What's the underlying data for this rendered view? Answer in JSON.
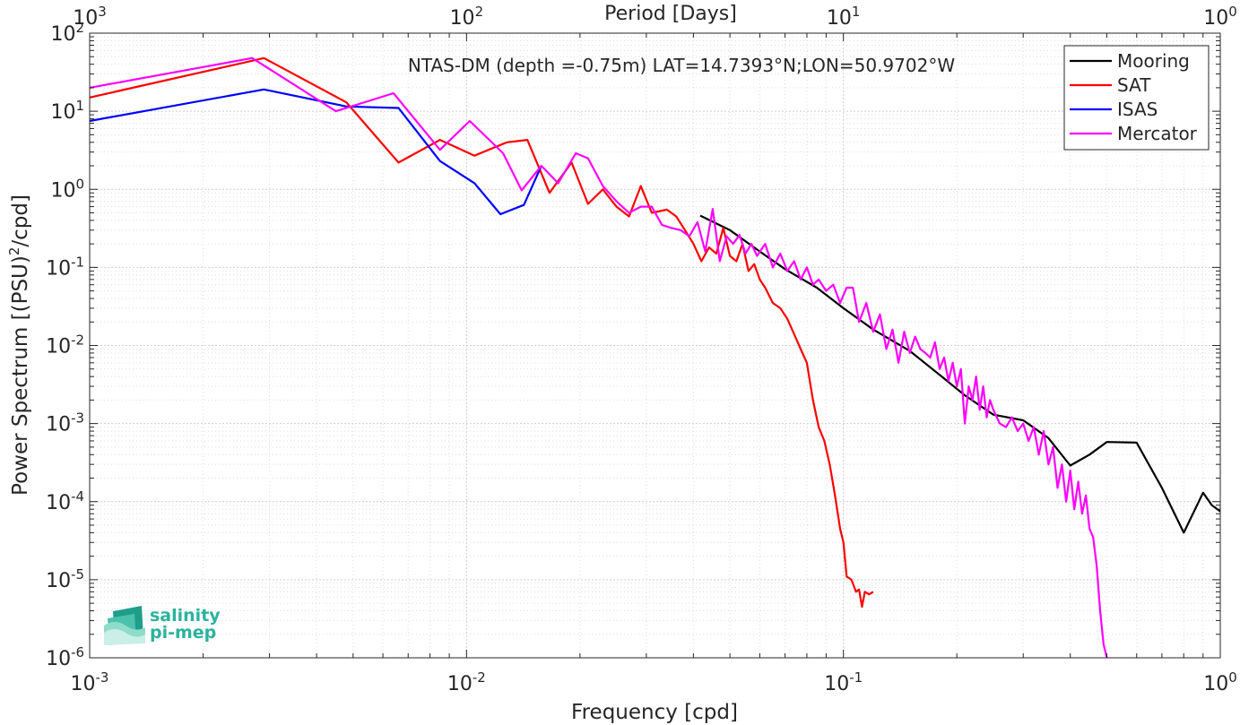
{
  "chart_data": {
    "type": "line",
    "title": "NTAS-DM (depth =-0.75m) LAT=14.7393°N;LON=50.9702°W",
    "xlabel": "Frequency [cpd]",
    "ylabel_prefix": "Power Spectrum [(PSU)",
    "ylabel_sup": "2",
    "ylabel_suffix": "/cpd]",
    "top_xlabel": "Period [Days]",
    "x_scale": "log",
    "y_scale": "log",
    "xlim": [
      0.001,
      1
    ],
    "ylim": [
      1e-06,
      100
    ],
    "grid": true,
    "legend_position": "top-right",
    "x_ticks": [
      {
        "v": 0.001,
        "base": "10",
        "exp": "-3"
      },
      {
        "v": 0.01,
        "base": "10",
        "exp": "-2"
      },
      {
        "v": 0.1,
        "base": "10",
        "exp": "-1"
      },
      {
        "v": 1,
        "base": "10",
        "exp": "0"
      }
    ],
    "top_ticks": [
      {
        "v": 0.001,
        "base": "10",
        "exp": "3"
      },
      {
        "v": 0.01,
        "base": "10",
        "exp": "2"
      },
      {
        "v": 0.1,
        "base": "10",
        "exp": "1"
      },
      {
        "v": 1,
        "base": "10",
        "exp": "0"
      }
    ],
    "y_ticks": [
      {
        "v": 1e-06,
        "base": "10",
        "exp": "-6"
      },
      {
        "v": 1e-05,
        "base": "10",
        "exp": "-5"
      },
      {
        "v": 0.0001,
        "base": "10",
        "exp": "-4"
      },
      {
        "v": 0.001,
        "base": "10",
        "exp": "-3"
      },
      {
        "v": 0.01,
        "base": "10",
        "exp": "-2"
      },
      {
        "v": 0.1,
        "base": "10",
        "exp": "-1"
      },
      {
        "v": 1,
        "base": "10",
        "exp": "0"
      },
      {
        "v": 10,
        "base": "10",
        "exp": "1"
      },
      {
        "v": 100,
        "base": "10",
        "exp": "2"
      }
    ],
    "series": [
      {
        "name": "Mooring",
        "color": "#000000",
        "points": [
          [
            0.0417,
            0.46
          ],
          [
            0.05,
            0.3
          ],
          [
            0.06,
            0.16
          ],
          [
            0.07,
            0.095
          ],
          [
            0.085,
            0.055
          ],
          [
            0.1,
            0.03
          ],
          [
            0.12,
            0.016
          ],
          [
            0.15,
            0.0085
          ],
          [
            0.18,
            0.0042
          ],
          [
            0.21,
            0.0023
          ],
          [
            0.25,
            0.0013
          ],
          [
            0.3,
            0.0011
          ],
          [
            0.35,
            0.00065
          ],
          [
            0.4,
            0.00029
          ],
          [
            0.45,
            0.0004
          ],
          [
            0.5,
            0.00058
          ],
          [
            0.6,
            0.00057
          ],
          [
            0.7,
            0.00015
          ],
          [
            0.8,
            4e-05
          ],
          [
            0.9,
            0.00013
          ],
          [
            0.95,
            9e-05
          ],
          [
            1.0,
            7.5e-05
          ]
        ]
      },
      {
        "name": "SAT",
        "color": "#ff0000",
        "points": [
          [
            0.001,
            15
          ],
          [
            0.0029,
            48
          ],
          [
            0.0048,
            13
          ],
          [
            0.0066,
            2.2
          ],
          [
            0.0085,
            4.3
          ],
          [
            0.0105,
            2.7
          ],
          [
            0.0118,
            3.4
          ],
          [
            0.0128,
            4.0
          ],
          [
            0.0145,
            4.3
          ],
          [
            0.0166,
            0.9
          ],
          [
            0.019,
            2.2
          ],
          [
            0.021,
            0.65
          ],
          [
            0.023,
            1.0
          ],
          [
            0.025,
            0.6
          ],
          [
            0.027,
            0.45
          ],
          [
            0.029,
            1.1
          ],
          [
            0.031,
            0.5
          ],
          [
            0.034,
            0.55
          ],
          [
            0.036,
            0.45
          ],
          [
            0.038,
            0.3
          ],
          [
            0.04,
            0.2
          ],
          [
            0.042,
            0.12
          ],
          [
            0.044,
            0.18
          ],
          [
            0.046,
            0.15
          ],
          [
            0.048,
            0.32
          ],
          [
            0.05,
            0.14
          ],
          [
            0.052,
            0.12
          ],
          [
            0.054,
            0.2
          ],
          [
            0.056,
            0.09
          ],
          [
            0.058,
            0.11
          ],
          [
            0.06,
            0.07
          ],
          [
            0.062,
            0.055
          ],
          [
            0.065,
            0.035
          ],
          [
            0.068,
            0.03
          ],
          [
            0.071,
            0.022
          ],
          [
            0.074,
            0.014
          ],
          [
            0.077,
            0.009
          ],
          [
            0.08,
            0.006
          ],
          [
            0.083,
            0.002
          ],
          [
            0.086,
            0.0009
          ],
          [
            0.089,
            0.0006
          ],
          [
            0.092,
            0.0003
          ],
          [
            0.095,
            0.00012
          ],
          [
            0.098,
            4.5e-05
          ],
          [
            0.1,
            3e-05
          ],
          [
            0.102,
            1.1e-05
          ],
          [
            0.105,
            1e-05
          ],
          [
            0.108,
            7e-06
          ],
          [
            0.11,
            7.5e-06
          ],
          [
            0.112,
            4.5e-06
          ],
          [
            0.114,
            7e-06
          ],
          [
            0.117,
            6.5e-06
          ],
          [
            0.12,
            7e-06
          ]
        ]
      },
      {
        "name": "ISAS",
        "color": "#0000ff",
        "points": [
          [
            0.001,
            7.5
          ],
          [
            0.0029,
            19
          ],
          [
            0.0048,
            11.5
          ],
          [
            0.0066,
            11
          ],
          [
            0.0085,
            2.3
          ],
          [
            0.0105,
            1.2
          ],
          [
            0.0123,
            0.48
          ],
          [
            0.0142,
            0.63
          ],
          [
            0.0158,
            2.0
          ]
        ]
      },
      {
        "name": "Mercator",
        "color": "#ff00ff",
        "points": [
          [
            0.001,
            20
          ],
          [
            0.0027,
            48
          ],
          [
            0.0045,
            10
          ],
          [
            0.0064,
            17
          ],
          [
            0.0085,
            3.2
          ],
          [
            0.0102,
            7.5
          ],
          [
            0.0125,
            2.9
          ],
          [
            0.014,
            0.97
          ],
          [
            0.0158,
            2.0
          ],
          [
            0.0175,
            1.2
          ],
          [
            0.0195,
            2.9
          ],
          [
            0.021,
            2.5
          ],
          [
            0.023,
            1.1
          ],
          [
            0.025,
            0.7
          ],
          [
            0.027,
            0.5
          ],
          [
            0.029,
            0.6
          ],
          [
            0.031,
            0.6
          ],
          [
            0.033,
            0.35
          ],
          [
            0.035,
            0.32
          ],
          [
            0.037,
            0.3
          ],
          [
            0.039,
            0.25
          ],
          [
            0.041,
            0.38
          ],
          [
            0.043,
            0.16
          ],
          [
            0.045,
            0.56
          ],
          [
            0.047,
            0.12
          ],
          [
            0.049,
            0.25
          ],
          [
            0.051,
            0.2
          ],
          [
            0.053,
            0.26
          ],
          [
            0.055,
            0.15
          ],
          [
            0.057,
            0.2
          ],
          [
            0.059,
            0.14
          ],
          [
            0.062,
            0.2
          ],
          [
            0.065,
            0.1
          ],
          [
            0.068,
            0.15
          ],
          [
            0.071,
            0.09
          ],
          [
            0.074,
            0.12
          ],
          [
            0.077,
            0.07
          ],
          [
            0.08,
            0.1
          ],
          [
            0.083,
            0.06
          ],
          [
            0.086,
            0.07
          ],
          [
            0.09,
            0.05
          ],
          [
            0.094,
            0.06
          ],
          [
            0.098,
            0.035
          ],
          [
            0.102,
            0.055
          ],
          [
            0.106,
            0.055
          ],
          [
            0.11,
            0.02
          ],
          [
            0.115,
            0.035
          ],
          [
            0.12,
            0.015
          ],
          [
            0.125,
            0.025
          ],
          [
            0.13,
            0.009
          ],
          [
            0.135,
            0.016
          ],
          [
            0.14,
            0.006
          ],
          [
            0.145,
            0.015
          ],
          [
            0.15,
            0.008
          ],
          [
            0.155,
            0.013
          ],
          [
            0.16,
            0.009
          ],
          [
            0.165,
            0.008
          ],
          [
            0.17,
            0.007
          ],
          [
            0.175,
            0.011
          ],
          [
            0.18,
            0.005
          ],
          [
            0.185,
            0.007
          ],
          [
            0.19,
            0.0035
          ],
          [
            0.195,
            0.006
          ],
          [
            0.2,
            0.003
          ],
          [
            0.205,
            0.005
          ],
          [
            0.21,
            0.001
          ],
          [
            0.215,
            0.003
          ],
          [
            0.22,
            0.002
          ],
          [
            0.225,
            0.004
          ],
          [
            0.23,
            0.0015
          ],
          [
            0.235,
            0.003
          ],
          [
            0.24,
            0.0012
          ],
          [
            0.245,
            0.002
          ],
          [
            0.25,
            0.0015
          ],
          [
            0.26,
            0.001
          ],
          [
            0.27,
            0.0009
          ],
          [
            0.28,
            0.0012
          ],
          [
            0.29,
            0.0008
          ],
          [
            0.3,
            0.001
          ],
          [
            0.31,
            0.0006
          ],
          [
            0.32,
            0.0009
          ],
          [
            0.33,
            0.0004
          ],
          [
            0.34,
            0.0008
          ],
          [
            0.35,
            0.0003
          ],
          [
            0.36,
            0.0005
          ],
          [
            0.37,
            0.00015
          ],
          [
            0.38,
            0.0003
          ],
          [
            0.39,
            0.0001
          ],
          [
            0.4,
            0.00025
          ],
          [
            0.41,
            8e-05
          ],
          [
            0.42,
            0.00018
          ],
          [
            0.43,
            7e-05
          ],
          [
            0.44,
            0.00012
          ],
          [
            0.45,
            4.5e-05
          ],
          [
            0.46,
            3.5e-05
          ],
          [
            0.47,
            1.5e-05
          ],
          [
            0.48,
            4e-06
          ],
          [
            0.49,
            1.5e-06
          ],
          [
            0.5,
            1e-06
          ]
        ]
      }
    ]
  },
  "logo": {
    "line1": "salinity",
    "line2": "pi-mep",
    "color": "#2bb39d"
  }
}
